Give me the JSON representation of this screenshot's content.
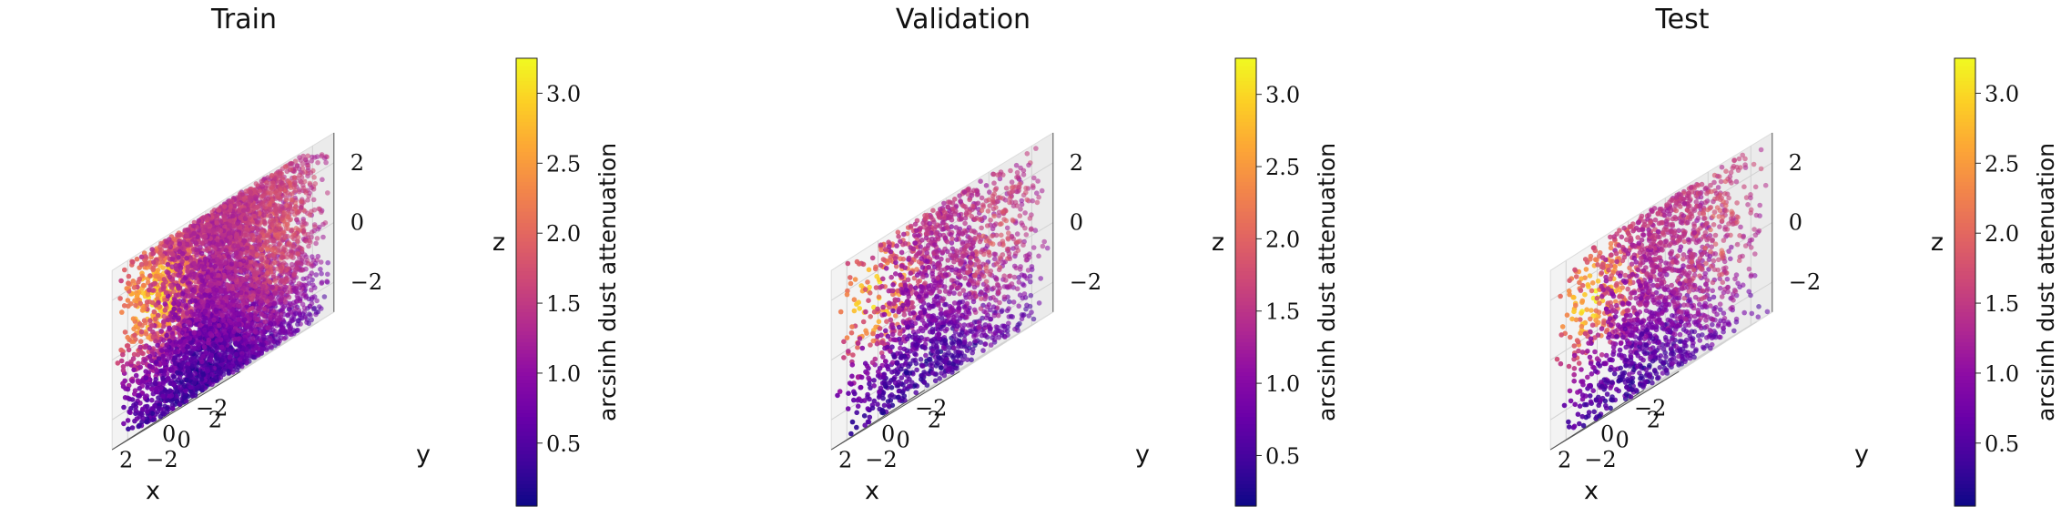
{
  "chart_data": [
    {
      "type": "scatter",
      "title": "Train",
      "xlabel": "x",
      "ylabel": "y",
      "zlabel": "z",
      "x_ticks": [
        "−2",
        "0",
        "2"
      ],
      "y_ticks": [
        "−2",
        "0",
        "2"
      ],
      "z_ticks": [
        "−2",
        "0",
        "2"
      ],
      "xlim": [
        -3,
        3
      ],
      "ylim": [
        -3,
        3
      ],
      "zlim": [
        -3,
        3
      ],
      "colorbar": {
        "label": "arcsinh dust attenuation",
        "colormap": "plasma",
        "range": [
          0.05,
          3.25
        ],
        "ticks": [
          "0.5",
          "1.0",
          "1.5",
          "2.0",
          "2.5",
          "3.0"
        ]
      },
      "n_points": 5200
    },
    {
      "type": "scatter",
      "title": "Validation",
      "xlabel": "x",
      "ylabel": "y",
      "zlabel": "z",
      "x_ticks": [
        "−2",
        "0",
        "2"
      ],
      "y_ticks": [
        "−2",
        "0",
        "2"
      ],
      "z_ticks": [
        "−2",
        "0",
        "2"
      ],
      "xlim": [
        -3,
        3
      ],
      "ylim": [
        -3,
        3
      ],
      "zlim": [
        -3,
        3
      ],
      "colorbar": {
        "label": "arcsinh dust attenuation",
        "colormap": "plasma",
        "range": [
          0.15,
          3.25
        ],
        "ticks": [
          "0.5",
          "1.0",
          "1.5",
          "2.0",
          "2.5",
          "3.0"
        ]
      },
      "n_points": 1700
    },
    {
      "type": "scatter",
      "title": "Test",
      "xlabel": "x",
      "ylabel": "y",
      "zlabel": "z",
      "x_ticks": [
        "−2",
        "0",
        "2"
      ],
      "y_ticks": [
        "−2",
        "0",
        "2"
      ],
      "z_ticks": [
        "−2",
        "0",
        "2"
      ],
      "xlim": [
        -3,
        3
      ],
      "ylim": [
        -3,
        3
      ],
      "zlim": [
        -3,
        3
      ],
      "colorbar": {
        "label": "arcsinh dust attenuation",
        "colormap": "plasma",
        "range": [
          0.05,
          3.25
        ],
        "ticks": [
          "0.5",
          "1.0",
          "1.5",
          "2.0",
          "2.5",
          "3.0"
        ]
      },
      "n_points": 1700
    }
  ],
  "colors": {
    "plasma": [
      "#0d0887",
      "#41049d",
      "#6a00a8",
      "#8f0da4",
      "#b12a90",
      "#cc4778",
      "#e16462",
      "#f2844b",
      "#fca636",
      "#fcce25",
      "#f0f921"
    ]
  }
}
